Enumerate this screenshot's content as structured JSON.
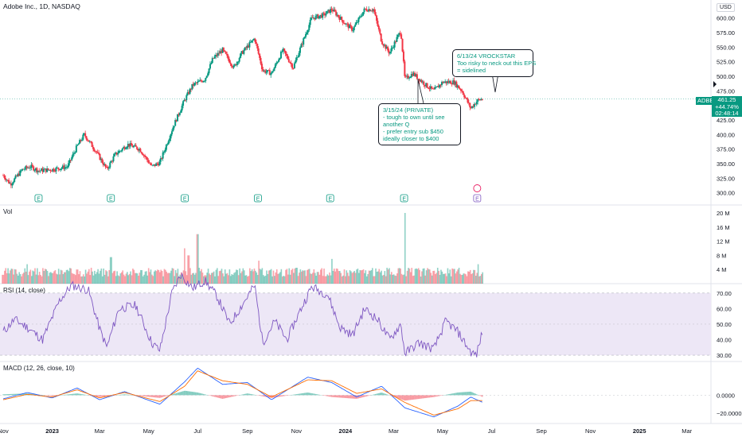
{
  "header": {
    "title": "Adobe Inc., 1D, NASDAQ",
    "currency": "USD"
  },
  "price_axis": [
    "600.00",
    "575.00",
    "550.00",
    "525.00",
    "500.00",
    "475.00",
    "450.00",
    "425.00",
    "400.00",
    "375.00",
    "350.00",
    "325.00",
    "300.00"
  ],
  "price_tag": {
    "ticker": "ADBE",
    "price": "461.25",
    "change": "+44.74%",
    "countdown": "02:48:14"
  },
  "volume": {
    "label": "Vol",
    "axis": [
      "20 M",
      "16 M",
      "12 M",
      "8 M",
      "4 M"
    ]
  },
  "rsi": {
    "label": "RSI (14, close)",
    "axis": [
      "70.00",
      "60.00",
      "50.00",
      "40.00",
      "30.00"
    ]
  },
  "macd": {
    "label": "MACD (12, 26, close, 10)",
    "axis": [
      "0.0000",
      "−20.0000"
    ]
  },
  "time_axis": [
    "Nov",
    "2023",
    "Mar",
    "May",
    "Jul",
    "Sep",
    "Nov",
    "2024",
    "Mar",
    "May",
    "Jul",
    "Sep",
    "Nov",
    "2025",
    "Mar"
  ],
  "notes": [
    {
      "lines": [
        "3/15/24 (PRIVATE)",
        "- tough to own until see",
        "another Q",
        "- prefer entry sub $450",
        "ideally closer to $400"
      ]
    },
    {
      "lines": [
        "6/13/24 VROCKSTAR",
        "Too risky to neck out this EPS",
        "= sidelined"
      ]
    }
  ],
  "earnings_marker": "E",
  "colors": {
    "up": "#089981",
    "down": "#f23645",
    "rsi_line": "#7e57c2",
    "rsi_band": "#ede7f6",
    "macd_line": "#2962ff",
    "signal_line": "#ff6d00"
  },
  "chart_data": [
    {
      "type": "line",
      "series": [
        {
          "values": [
            [
              "2022-11-01",
              330
            ],
            [
              "2022-11-10",
              315
            ],
            [
              "2022-11-25",
              340
            ],
            [
              "2022-12-05",
              345
            ],
            [
              "2022-12-15",
              338
            ],
            [
              "2023-01-01",
              340
            ],
            [
              "2023-01-20",
              345
            ],
            [
              "2023-02-01",
              380
            ],
            [
              "2023-02-10",
              400
            ],
            [
              "2023-02-25",
              370
            ],
            [
              "2023-03-10",
              340
            ],
            [
              "2023-03-20",
              365
            ],
            [
              "2023-04-05",
              383
            ],
            [
              "2023-04-20",
              375
            ],
            [
              "2023-05-05",
              345
            ],
            [
              "2023-05-15",
              352
            ],
            [
              "2023-06-01",
              415
            ],
            [
              "2023-06-15",
              460
            ],
            [
              "2023-06-25",
              485
            ],
            [
              "2023-07-10",
              495
            ],
            [
              "2023-07-20",
              530
            ],
            [
              "2023-08-01",
              545
            ],
            [
              "2023-08-15",
              515
            ],
            [
              "2023-08-25",
              540
            ],
            [
              "2023-09-10",
              565
            ],
            [
              "2023-09-20",
              510
            ],
            [
              "2023-10-01",
              505
            ],
            [
              "2023-10-15",
              545
            ],
            [
              "2023-10-28",
              515
            ],
            [
              "2023-11-05",
              545
            ],
            [
              "2023-11-20",
              600
            ],
            [
              "2023-12-05",
              605
            ],
            [
              "2023-12-15",
              615
            ],
            [
              "2024-01-01",
              590
            ],
            [
              "2024-01-10",
              580
            ],
            [
              "2024-01-25",
              615
            ],
            [
              "2024-02-05",
              615
            ],
            [
              "2024-02-15",
              560
            ],
            [
              "2024-02-25",
              540
            ],
            [
              "2024-03-05",
              565
            ],
            [
              "2024-03-10",
              578
            ],
            [
              "2024-03-15",
              495
            ],
            [
              "2024-03-25",
              505
            ],
            [
              "2024-04-10",
              485
            ],
            [
              "2024-04-20",
              475
            ],
            [
              "2024-05-01",
              490
            ],
            [
              "2024-05-15",
              490
            ],
            [
              "2024-05-25",
              475
            ],
            [
              "2024-06-05",
              445
            ],
            [
              "2024-06-13",
              458
            ],
            [
              "2024-06-20",
              461.25
            ]
          ]
        }
      ],
      "ylim": [
        290,
        620
      ],
      "xlim": [
        "2022-10-28",
        "2025-03-31"
      ]
    },
    {
      "type": "bar",
      "values": [
        [
          "2022-11-01",
          2.5
        ],
        [
          "2022-12-01",
          5.5
        ],
        [
          "2023-01-01",
          3
        ],
        [
          "2023-02-01",
          4
        ],
        [
          "2023-03-15",
          7.5
        ],
        [
          "2023-04-15",
          3
        ],
        [
          "2023-06-15",
          10
        ],
        [
          "2023-06-20",
          8
        ],
        [
          "2023-07-01",
          14
        ],
        [
          "2023-09-15",
          6.5
        ],
        [
          "2023-11-01",
          4.5
        ],
        [
          "2023-12-15",
          7
        ],
        [
          "2024-01-15",
          4
        ],
        [
          "2024-03-15",
          20
        ],
        [
          "2024-04-15",
          4
        ],
        [
          "2024-06-14",
          5.5
        ]
      ],
      "ylim": [
        0,
        20
      ]
    },
    {
      "type": "line",
      "series": [
        {
          "values": [
            [
              "2022-11-01",
              45
            ],
            [
              "2022-11-15",
              53
            ],
            [
              "2022-12-01",
              48
            ],
            [
              "2022-12-20",
              40
            ],
            [
              "2023-01-10",
              65
            ],
            [
              "2023-01-25",
              75
            ],
            [
              "2023-02-15",
              72
            ],
            [
              "2023-03-01",
              47
            ],
            [
              "2023-03-10",
              35
            ],
            [
              "2023-03-25",
              60
            ],
            [
              "2023-04-15",
              62
            ],
            [
              "2023-05-05",
              38
            ],
            [
              "2023-05-15",
              33
            ],
            [
              "2023-05-30",
              70
            ],
            [
              "2023-06-10",
              82
            ],
            [
              "2023-06-25",
              73
            ],
            [
              "2023-07-10",
              78
            ],
            [
              "2023-07-25",
              68
            ],
            [
              "2023-08-10",
              50
            ],
            [
              "2023-08-25",
              62
            ],
            [
              "2023-09-10",
              75
            ],
            [
              "2023-09-20",
              38
            ],
            [
              "2023-10-05",
              52
            ],
            [
              "2023-10-20",
              40
            ],
            [
              "2023-11-05",
              58
            ],
            [
              "2023-11-20",
              74
            ],
            [
              "2023-12-10",
              69
            ],
            [
              "2023-12-25",
              48
            ],
            [
              "2024-01-10",
              43
            ],
            [
              "2024-01-25",
              60
            ],
            [
              "2024-02-10",
              53
            ],
            [
              "2024-02-25",
              40
            ],
            [
              "2024-03-10",
              50
            ],
            [
              "2024-03-15",
              31
            ],
            [
              "2024-04-01",
              38
            ],
            [
              "2024-04-20",
              34
            ],
            [
              "2024-05-05",
              52
            ],
            [
              "2024-05-20",
              45
            ],
            [
              "2024-06-05",
              32
            ],
            [
              "2024-06-12",
              30
            ],
            [
              "2024-06-20",
              46
            ]
          ]
        }
      ],
      "ylim": [
        28,
        74
      ]
    },
    {
      "type": "line",
      "series": [
        {
          "values": [
            [
              "2022-11-01",
              -4
            ],
            [
              "2022-12-01",
              3
            ],
            [
              "2023-01-01",
              -3
            ],
            [
              "2023-02-01",
              8
            ],
            [
              "2023-03-01",
              -5
            ],
            [
              "2023-04-01",
              4
            ],
            [
              "2023-05-15",
              -10
            ],
            [
              "2023-06-15",
              15
            ],
            [
              "2023-07-01",
              30
            ],
            [
              "2023-08-01",
              12
            ],
            [
              "2023-09-01",
              14
            ],
            [
              "2023-10-01",
              -5
            ],
            [
              "2023-11-15",
              20
            ],
            [
              "2023-12-15",
              14
            ],
            [
              "2024-01-15",
              -2
            ],
            [
              "2024-02-15",
              10
            ],
            [
              "2024-03-15",
              -14
            ],
            [
              "2024-04-20",
              -24
            ],
            [
              "2024-05-20",
              -12
            ],
            [
              "2024-06-05",
              -2
            ],
            [
              "2024-06-20",
              -8
            ]
          ]
        },
        {
          "values": [
            [
              "2022-11-01",
              -5
            ],
            [
              "2022-12-01",
              1
            ],
            [
              "2023-01-01",
              -2
            ],
            [
              "2023-02-01",
              6
            ],
            [
              "2023-03-01",
              -3
            ],
            [
              "2023-04-01",
              3
            ],
            [
              "2023-05-15",
              -7
            ],
            [
              "2023-06-15",
              10
            ],
            [
              "2023-07-01",
              27
            ],
            [
              "2023-08-01",
              16
            ],
            [
              "2023-09-01",
              12
            ],
            [
              "2023-10-01",
              -2
            ],
            [
              "2023-11-15",
              17
            ],
            [
              "2023-12-15",
              16
            ],
            [
              "2024-01-15",
              2
            ],
            [
              "2024-02-15",
              7
            ],
            [
              "2024-03-15",
              -8
            ],
            [
              "2024-04-20",
              -22
            ],
            [
              "2024-05-20",
              -15
            ],
            [
              "2024-06-05",
              -6
            ],
            [
              "2024-06-20",
              -6
            ]
          ]
        }
      ],
      "ylim": [
        -26,
        32
      ]
    }
  ]
}
